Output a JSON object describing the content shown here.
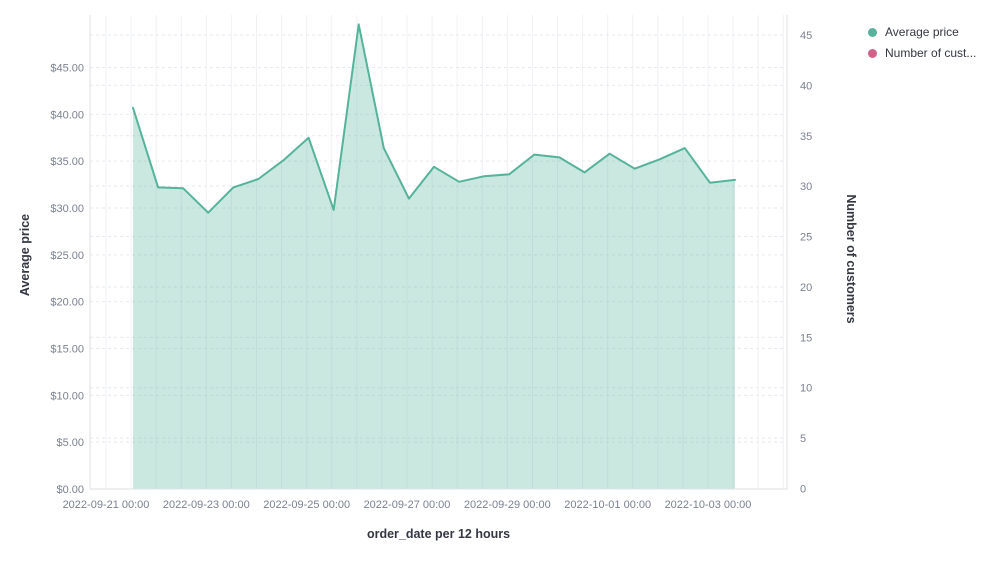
{
  "legend": {
    "items": [
      {
        "label": "Average price",
        "color": "#54B399"
      },
      {
        "label": "Number of cust...",
        "color": "#D36086"
      }
    ]
  },
  "chart_data": {
    "type": "area",
    "title": "",
    "xlabel": "order_date per 12 hours",
    "ylabel_left": "Average price",
    "ylabel_right": "Number of customers",
    "x_tick_labels": [
      "2022-09-21 00:00",
      "2022-09-23 00:00",
      "2022-09-25 00:00",
      "2022-09-27 00:00",
      "2022-09-29 00:00",
      "2022-10-01 00:00",
      "2022-10-03 00:00"
    ],
    "y_left_axis": {
      "tick_labels": [
        "$0.00",
        "$5.00",
        "$10.00",
        "$15.00",
        "$20.00",
        "$25.00",
        "$30.00",
        "$35.00",
        "$40.00",
        "$45.00"
      ],
      "tick_values": [
        0,
        5,
        10,
        15,
        20,
        25,
        30,
        35,
        40,
        45
      ],
      "ylim": [
        0,
        50.6
      ],
      "grid": "dashed"
    },
    "y_right_axis": {
      "tick_labels": [
        "0",
        "5",
        "10",
        "15",
        "20",
        "25",
        "30",
        "35",
        "40",
        "45"
      ],
      "tick_values": [
        0,
        5,
        10,
        15,
        20,
        25,
        30,
        35,
        40,
        45
      ],
      "ylim": [
        0,
        47
      ],
      "grid": "dashed"
    },
    "legend_position": "top-right",
    "series": [
      {
        "name": "Average price",
        "color": "#54B399",
        "fill_opacity": 0.3,
        "axis": "left",
        "x": [
          "2022-09-21 12:00",
          "2022-09-22 00:00",
          "2022-09-22 12:00",
          "2022-09-23 00:00",
          "2022-09-23 12:00",
          "2022-09-24 00:00",
          "2022-09-24 12:00",
          "2022-09-25 00:00",
          "2022-09-25 12:00",
          "2022-09-26 00:00",
          "2022-09-26 12:00",
          "2022-09-27 00:00",
          "2022-09-27 12:00",
          "2022-09-28 00:00",
          "2022-09-28 12:00",
          "2022-09-29 00:00",
          "2022-09-29 12:00",
          "2022-09-30 00:00",
          "2022-09-30 12:00",
          "2022-10-01 00:00",
          "2022-10-01 12:00",
          "2022-10-02 00:00",
          "2022-10-02 12:00",
          "2022-10-03 00:00",
          "2022-10-03 12:00"
        ],
        "values": [
          40.7,
          32.2,
          32.1,
          29.5,
          32.2,
          33.1,
          35.1,
          37.5,
          29.8,
          49.6,
          36.4,
          31.0,
          34.4,
          32.8,
          33.4,
          33.6,
          35.7,
          35.4,
          33.8,
          35.8,
          34.2,
          35.2,
          36.4,
          32.7,
          33.0
        ]
      },
      {
        "name": "Number of customers",
        "color": "#D36086",
        "axis": "right",
        "values": []
      }
    ]
  }
}
